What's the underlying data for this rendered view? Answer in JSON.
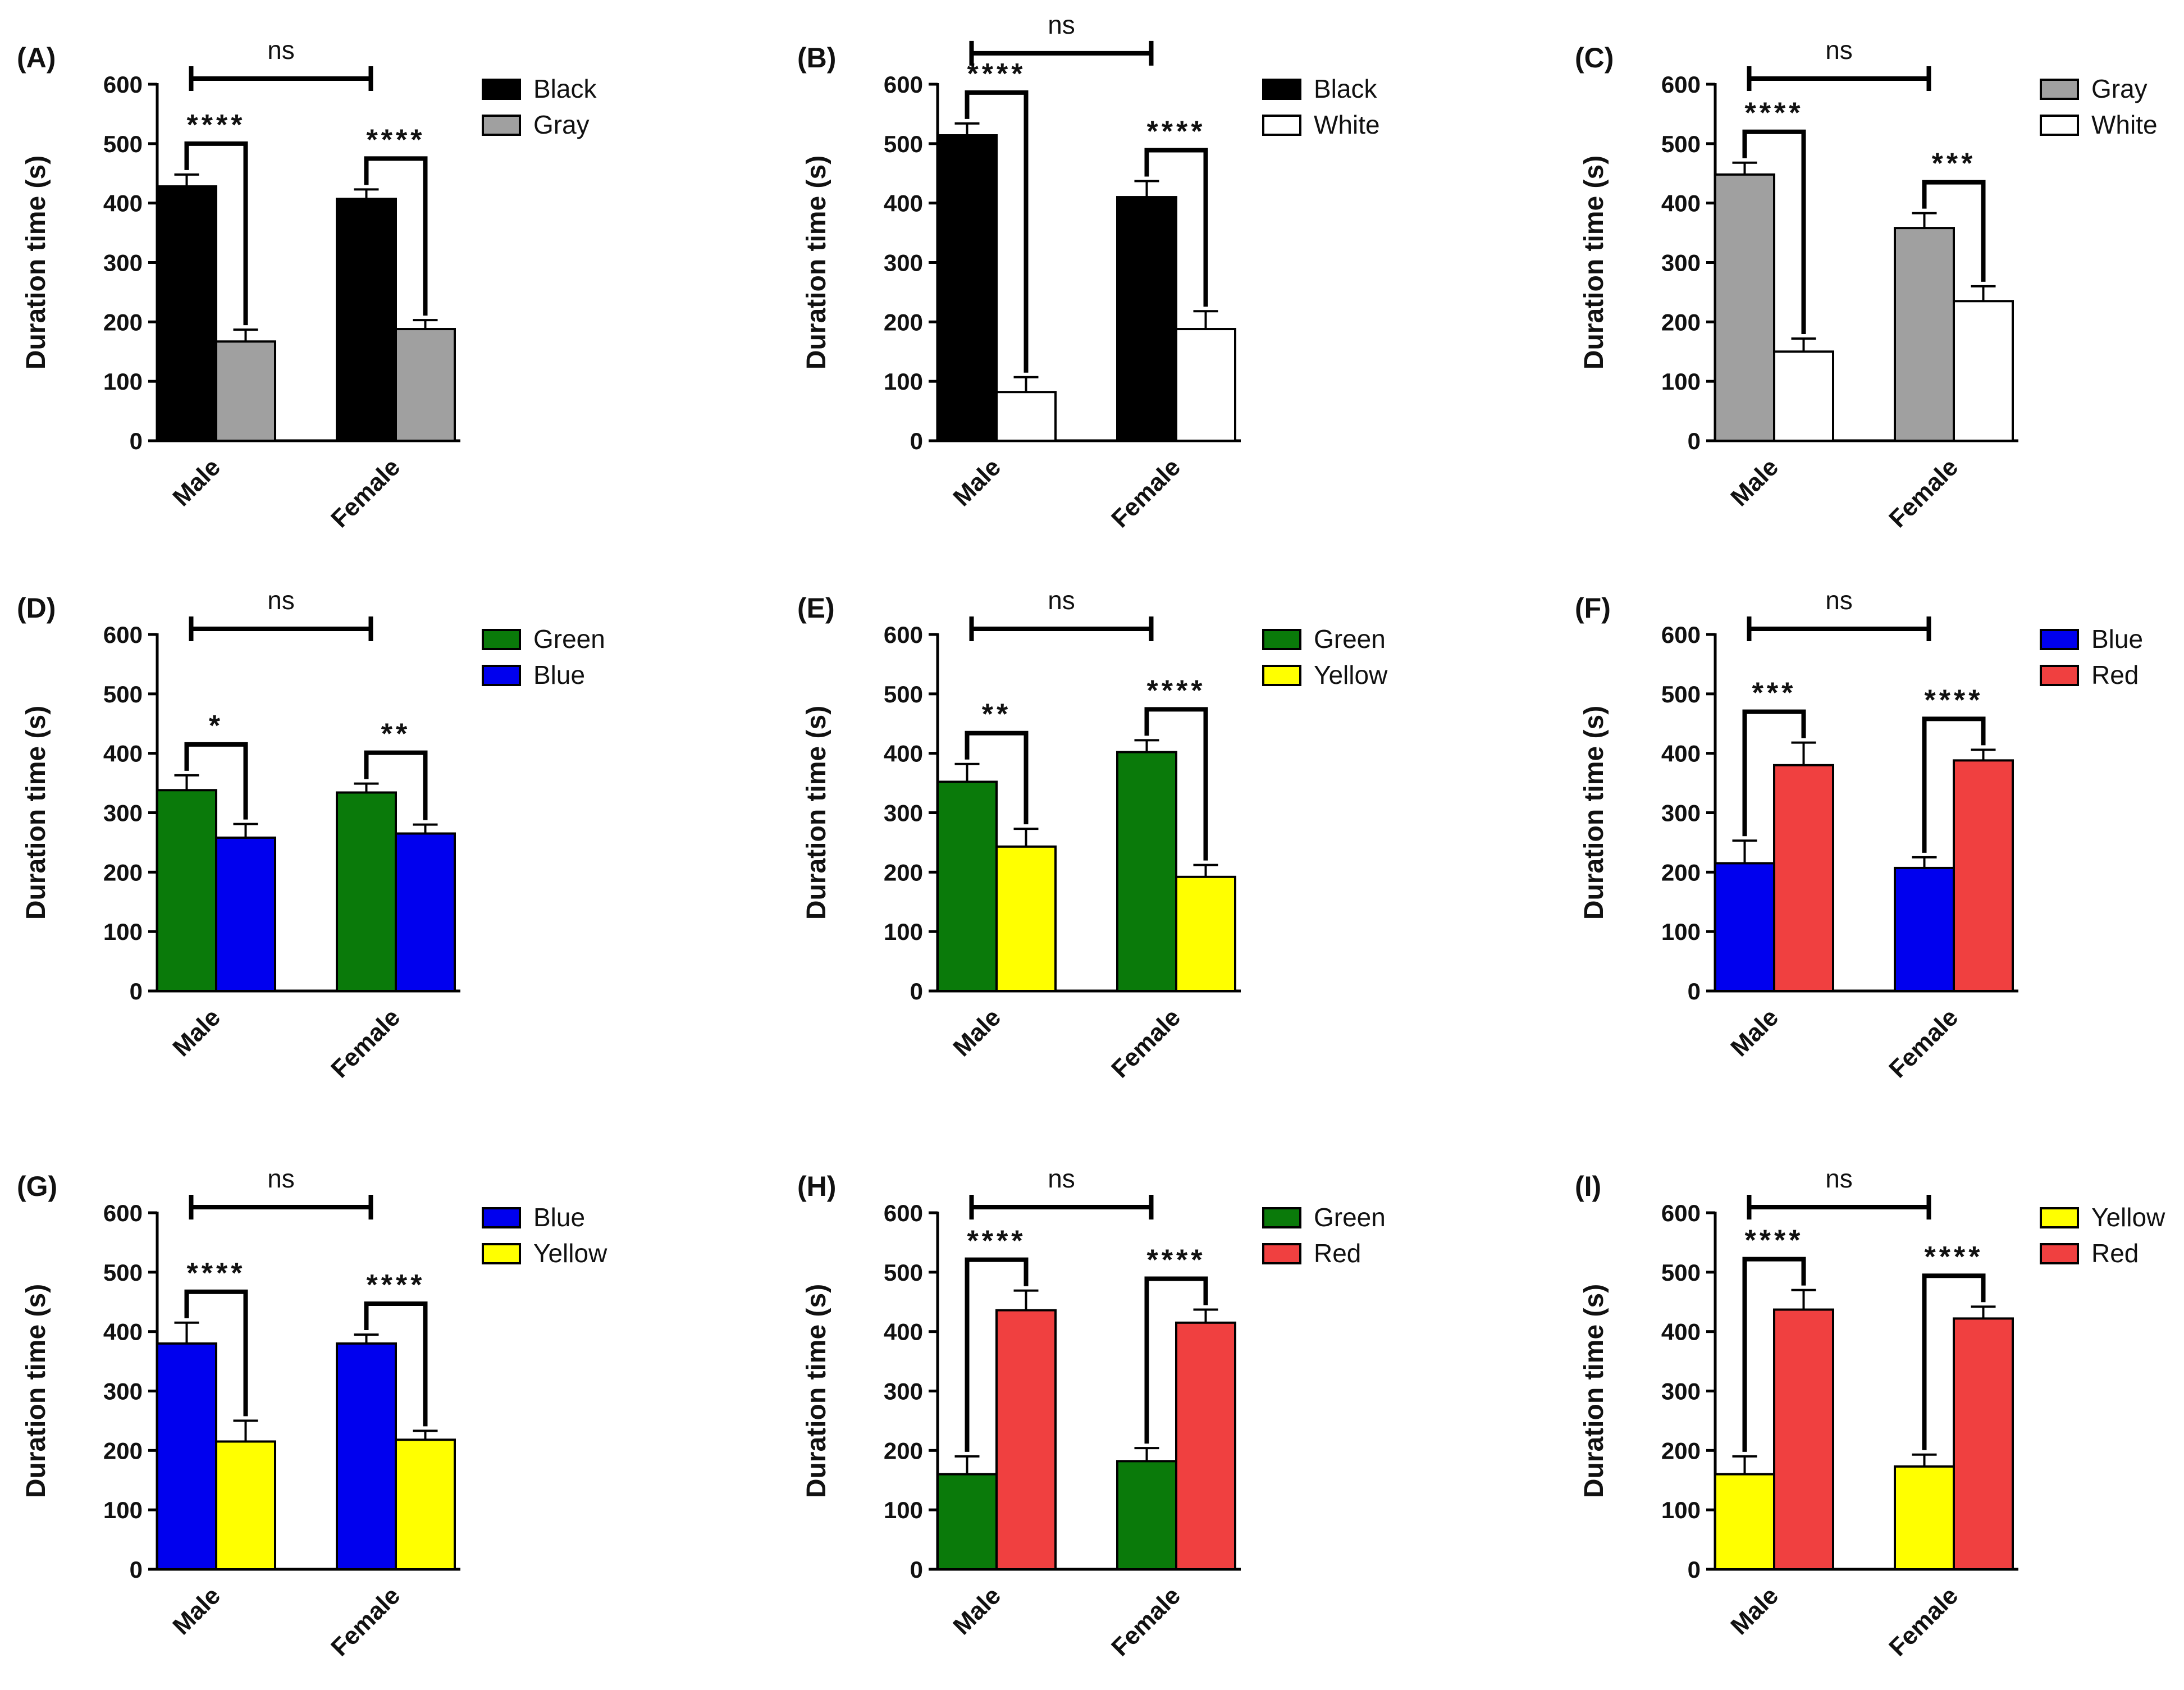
{
  "figure": {
    "y_axis_label": "Duration time (s)",
    "y_ticks": [
      0,
      100,
      200,
      300,
      400,
      500,
      600
    ]
  },
  "colors": {
    "Black": "#000000",
    "Gray": "#a0a0a0",
    "White": "#ffffff",
    "Green": "#0a7a0a",
    "Blue": "#0000ee",
    "Yellow": "#ffff00",
    "Red": "#f04040"
  },
  "chart_data": [
    {
      "panel": "(A)",
      "type": "bar",
      "categories": [
        "Male",
        "Female"
      ],
      "series": [
        {
          "name": "Black",
          "values": [
            428,
            407
          ],
          "errors": [
            20,
            16
          ]
        },
        {
          "name": "Gray",
          "values": [
            167,
            188
          ],
          "errors": [
            20,
            15
          ]
        }
      ],
      "within_sig": [
        "****",
        "****"
      ],
      "between_sig": "ns",
      "ylabel": "Duration time (s)",
      "ylim": [
        0,
        600
      ]
    },
    {
      "panel": "(B)",
      "type": "bar",
      "categories": [
        "Male",
        "Female"
      ],
      "series": [
        {
          "name": "Black",
          "values": [
            514,
            410
          ],
          "errors": [
            20,
            27
          ]
        },
        {
          "name": "White",
          "values": [
            82,
            188
          ],
          "errors": [
            25,
            30
          ]
        }
      ],
      "within_sig": [
        "****",
        "****"
      ],
      "between_sig": "ns",
      "ylabel": "Duration time (s)",
      "ylim": [
        0,
        600
      ]
    },
    {
      "panel": "(C)",
      "type": "bar",
      "categories": [
        "Male",
        "Female"
      ],
      "series": [
        {
          "name": "Gray",
          "values": [
            448,
            358
          ],
          "errors": [
            20,
            25
          ]
        },
        {
          "name": "White",
          "values": [
            150,
            235
          ],
          "errors": [
            22,
            25
          ]
        }
      ],
      "within_sig": [
        "****",
        "***"
      ],
      "between_sig": "ns",
      "ylabel": "Duration time (s)",
      "ylim": [
        0,
        600
      ]
    },
    {
      "panel": "(D)",
      "type": "bar",
      "categories": [
        "Male",
        "Female"
      ],
      "series": [
        {
          "name": "Green",
          "values": [
            338,
            334
          ],
          "errors": [
            25,
            15
          ]
        },
        {
          "name": "Blue",
          "values": [
            258,
            265
          ],
          "errors": [
            23,
            15
          ]
        }
      ],
      "within_sig": [
        "*",
        "**"
      ],
      "between_sig": "ns",
      "ylabel": "Duration time (s)",
      "ylim": [
        0,
        600
      ]
    },
    {
      "panel": "(E)",
      "type": "bar",
      "categories": [
        "Male",
        "Female"
      ],
      "series": [
        {
          "name": "Green",
          "values": [
            352,
            402
          ],
          "errors": [
            30,
            20
          ]
        },
        {
          "name": "Yellow",
          "values": [
            243,
            192
          ],
          "errors": [
            30,
            20
          ]
        }
      ],
      "within_sig": [
        "**",
        "****"
      ],
      "between_sig": "ns",
      "ylabel": "Duration time (s)",
      "ylim": [
        0,
        600
      ]
    },
    {
      "panel": "(F)",
      "type": "bar",
      "categories": [
        "Male",
        "Female"
      ],
      "series": [
        {
          "name": "Blue",
          "values": [
            215,
            207
          ],
          "errors": [
            38,
            18
          ]
        },
        {
          "name": "Red",
          "values": [
            380,
            388
          ],
          "errors": [
            38,
            18
          ]
        }
      ],
      "within_sig": [
        "***",
        "****"
      ],
      "between_sig": "ns",
      "ylabel": "Duration time (s)",
      "ylim": [
        0,
        600
      ]
    },
    {
      "panel": "(G)",
      "type": "bar",
      "categories": [
        "Male",
        "Female"
      ],
      "series": [
        {
          "name": "Blue",
          "values": [
            380,
            380
          ],
          "errors": [
            35,
            15
          ]
        },
        {
          "name": "Yellow",
          "values": [
            215,
            218
          ],
          "errors": [
            35,
            15
          ]
        }
      ],
      "within_sig": [
        "****",
        "****"
      ],
      "between_sig": "ns",
      "ylabel": "Duration time (s)",
      "ylim": [
        0,
        600
      ]
    },
    {
      "panel": "(H)",
      "type": "bar",
      "categories": [
        "Male",
        "Female"
      ],
      "series": [
        {
          "name": "Green",
          "values": [
            160,
            182
          ],
          "errors": [
            30,
            22
          ]
        },
        {
          "name": "Red",
          "values": [
            436,
            415
          ],
          "errors": [
            33,
            22
          ]
        }
      ],
      "within_sig": [
        "****",
        "****"
      ],
      "between_sig": "ns",
      "ylabel": "Duration time (s)",
      "ylim": [
        0,
        600
      ]
    },
    {
      "panel": "(I)",
      "type": "bar",
      "categories": [
        "Male",
        "Female"
      ],
      "series": [
        {
          "name": "Yellow",
          "values": [
            160,
            173
          ],
          "errors": [
            30,
            20
          ]
        },
        {
          "name": "Red",
          "values": [
            437,
            422
          ],
          "errors": [
            33,
            20
          ]
        }
      ],
      "within_sig": [
        "****",
        "****"
      ],
      "between_sig": "ns",
      "ylabel": "Duration time (s)",
      "ylim": [
        0,
        600
      ]
    }
  ]
}
